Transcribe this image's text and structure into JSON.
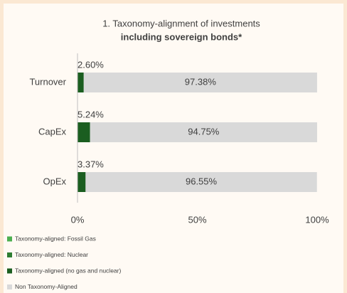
{
  "chart_data": {
    "type": "stacked_barh",
    "title": "1. Taxonomy-alignment of investments",
    "subtitle": "including sovereign bonds*",
    "categories": [
      "Turnover",
      "CapEx",
      "OpEx"
    ],
    "series": [
      {
        "name": "Taxonomy-aligned: Fossil Gas",
        "color": "#4caf50",
        "values": [
          0,
          0,
          0
        ]
      },
      {
        "name": "Taxonomy-aligned: Nuclear",
        "color": "#2e7d32",
        "values": [
          0,
          0,
          0
        ]
      },
      {
        "name": "Taxonomy-aligned (no gas and nuclear)",
        "color": "#1b5e20",
        "values": [
          2.6,
          5.24,
          3.37
        ],
        "value_labels": [
          "2.60%",
          "5.24%",
          "3.37%"
        ]
      },
      {
        "name": "Non Taxonomy-Aligned",
        "color": "#d9d9d9",
        "values": [
          97.38,
          94.75,
          96.55
        ],
        "value_labels": [
          "97.38%",
          "94.75%",
          "96.55%"
        ]
      }
    ],
    "xlim": [
      0,
      100
    ],
    "xticks": [
      {
        "value": 0,
        "label": "0%"
      },
      {
        "value": 50,
        "label": "50%"
      },
      {
        "value": 100,
        "label": "100%"
      }
    ]
  }
}
